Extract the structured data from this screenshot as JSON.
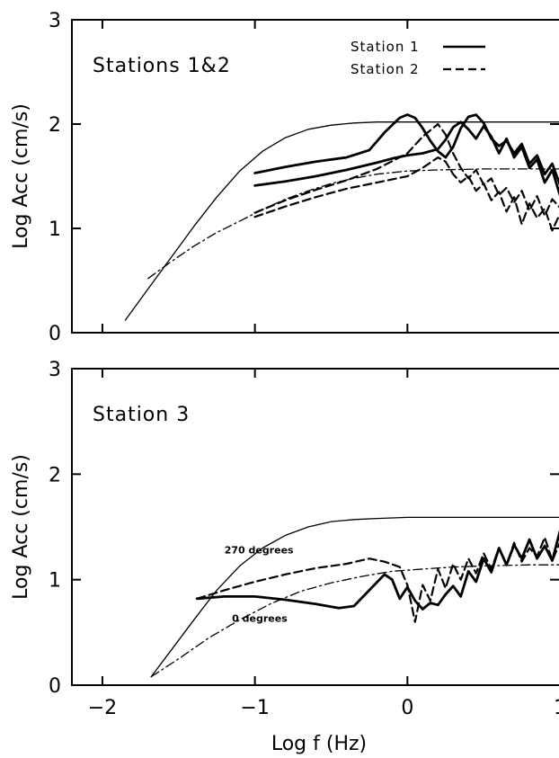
{
  "figure": {
    "xlabel": "Log f (Hz)",
    "xlim": [
      -2.2,
      1.1
    ],
    "xticks": [
      -2,
      -1,
      0,
      1
    ],
    "ylabel_top": "Log Acc (cm/s)",
    "ylabel_bottom": "Log Acc (cm/s)"
  },
  "chart_data": [
    {
      "type": "line",
      "panel": "top",
      "title": "Stations 1&2",
      "xlabel": "",
      "ylabel": "Log Acc (cm/s)",
      "xlim": [
        -2.2,
        1.1
      ],
      "ylim": [
        0,
        3
      ],
      "yticks": [
        0,
        1,
        2,
        3
      ],
      "legend": {
        "placement": "top-right",
        "entries": [
          {
            "name": "Station 1",
            "style": "solid"
          },
          {
            "name": "Station 2",
            "style": "dashed"
          }
        ]
      },
      "series": [
        {
          "id": "model_high",
          "style": "solid",
          "width": 1.3,
          "x": [
            -1.85,
            -1.7,
            -1.55,
            -1.4,
            -1.25,
            -1.1,
            -0.95,
            -0.8,
            -0.65,
            -0.5,
            -0.35,
            -0.2,
            0,
            0.5,
            1.0
          ],
          "y": [
            0.12,
            0.42,
            0.72,
            1.02,
            1.3,
            1.55,
            1.74,
            1.87,
            1.95,
            1.99,
            2.01,
            2.02,
            2.02,
            2.02,
            2.02
          ]
        },
        {
          "id": "model_low",
          "style": "dashdot",
          "width": 1.3,
          "x": [
            -1.7,
            -1.55,
            -1.4,
            -1.25,
            -1.1,
            -0.95,
            -0.8,
            -0.65,
            -0.5,
            -0.35,
            -0.2,
            0,
            0.2,
            0.5,
            1.0
          ],
          "y": [
            0.52,
            0.68,
            0.83,
            0.96,
            1.07,
            1.18,
            1.28,
            1.36,
            1.43,
            1.48,
            1.52,
            1.55,
            1.56,
            1.57,
            1.57
          ]
        },
        {
          "id": "station1_a",
          "style": "solid",
          "width": 2.8,
          "x": [
            -1.0,
            -0.8,
            -0.6,
            -0.4,
            -0.25,
            -0.15,
            -0.05,
            0.0,
            0.05,
            0.1,
            0.15,
            0.2,
            0.25,
            0.3,
            0.35,
            0.4,
            0.45,
            0.5,
            0.55,
            0.6,
            0.65,
            0.7,
            0.75,
            0.8,
            0.85,
            0.9,
            0.95,
            1.0,
            1.05,
            1.1
          ],
          "y": [
            1.53,
            1.59,
            1.64,
            1.68,
            1.75,
            1.92,
            2.06,
            2.09,
            2.06,
            1.96,
            1.84,
            1.74,
            1.68,
            1.78,
            1.96,
            2.07,
            2.09,
            2.01,
            1.86,
            1.79,
            1.84,
            1.72,
            1.81,
            1.62,
            1.7,
            1.52,
            1.62,
            1.42,
            1.51,
            1.38
          ]
        },
        {
          "id": "station1_b",
          "style": "solid",
          "width": 2.8,
          "x": [
            -1.0,
            -0.8,
            -0.6,
            -0.4,
            -0.2,
            -0.1,
            0.0,
            0.1,
            0.2,
            0.25,
            0.3,
            0.35,
            0.4,
            0.45,
            0.5,
            0.55,
            0.6,
            0.65,
            0.7,
            0.75,
            0.8,
            0.85,
            0.9,
            0.95,
            1.0,
            1.05,
            1.1
          ],
          "y": [
            1.41,
            1.45,
            1.5,
            1.56,
            1.63,
            1.67,
            1.7,
            1.72,
            1.76,
            1.85,
            1.97,
            2.02,
            1.95,
            1.86,
            1.98,
            1.88,
            1.72,
            1.86,
            1.68,
            1.78,
            1.58,
            1.66,
            1.44,
            1.56,
            1.32,
            1.47,
            1.36
          ]
        },
        {
          "id": "station2_a",
          "style": "dashed",
          "width": 2.2,
          "x": [
            -1.0,
            -0.8,
            -0.6,
            -0.4,
            -0.2,
            0.0,
            0.1,
            0.2,
            0.25,
            0.3,
            0.35,
            0.4,
            0.45,
            0.5,
            0.55,
            0.6,
            0.65,
            0.7,
            0.75,
            0.8,
            0.85,
            0.9,
            0.95,
            1.0,
            1.05,
            1.1
          ],
          "y": [
            1.15,
            1.27,
            1.37,
            1.46,
            1.57,
            1.72,
            1.88,
            2.0,
            1.9,
            1.72,
            1.58,
            1.48,
            1.56,
            1.42,
            1.48,
            1.32,
            1.39,
            1.25,
            1.36,
            1.17,
            1.31,
            1.12,
            1.28,
            1.2,
            1.33,
            1.25
          ]
        },
        {
          "id": "station2_b",
          "style": "dashed",
          "width": 2.2,
          "x": [
            -1.0,
            -0.8,
            -0.6,
            -0.4,
            -0.2,
            0.0,
            0.1,
            0.2,
            0.25,
            0.3,
            0.35,
            0.4,
            0.45,
            0.5,
            0.55,
            0.6,
            0.65,
            0.7,
            0.75,
            0.8,
            0.85,
            0.9,
            0.95,
            1.0,
            1.05,
            1.1
          ],
          "y": [
            1.11,
            1.21,
            1.3,
            1.38,
            1.44,
            1.5,
            1.58,
            1.68,
            1.64,
            1.52,
            1.44,
            1.5,
            1.36,
            1.43,
            1.27,
            1.35,
            1.16,
            1.3,
            1.04,
            1.24,
            1.1,
            1.19,
            0.98,
            1.14,
            1.06,
            1.21
          ]
        }
      ]
    },
    {
      "type": "line",
      "panel": "bottom",
      "title": "Station 3",
      "xlabel": "Log f (Hz)",
      "ylabel": "Log Acc (cm/s)",
      "xlim": [
        -2.2,
        1.1
      ],
      "ylim": [
        0,
        3
      ],
      "yticks": [
        0,
        1,
        2,
        3
      ],
      "annotations": [
        {
          "text": "270 degrees",
          "x": -1.2,
          "y": 1.25
        },
        {
          "text": "0 degrees",
          "x": -1.15,
          "y": 0.6
        }
      ],
      "series": [
        {
          "id": "model_high",
          "style": "solid",
          "width": 1.3,
          "x": [
            -1.68,
            -1.55,
            -1.4,
            -1.25,
            -1.1,
            -0.95,
            -0.8,
            -0.65,
            -0.5,
            -0.35,
            -0.2,
            0,
            0.5,
            1.0
          ],
          "y": [
            0.08,
            0.33,
            0.62,
            0.9,
            1.13,
            1.3,
            1.42,
            1.5,
            1.55,
            1.57,
            1.58,
            1.59,
            1.59,
            1.59
          ]
        },
        {
          "id": "model_low",
          "style": "dashdot",
          "width": 1.3,
          "x": [
            -1.68,
            -1.5,
            -1.3,
            -1.1,
            -0.9,
            -0.7,
            -0.5,
            -0.3,
            -0.1,
            0.1,
            0.3,
            0.5,
            0.8,
            1.1
          ],
          "y": [
            0.08,
            0.25,
            0.45,
            0.62,
            0.77,
            0.89,
            0.97,
            1.03,
            1.08,
            1.1,
            1.12,
            1.13,
            1.14,
            1.14
          ]
        },
        {
          "id": "deg0",
          "style": "solid",
          "width": 2.8,
          "x": [
            -1.38,
            -1.2,
            -1.0,
            -0.8,
            -0.6,
            -0.45,
            -0.35,
            -0.25,
            -0.15,
            -0.1,
            -0.05,
            0.0,
            0.05,
            0.1,
            0.15,
            0.2,
            0.25,
            0.3,
            0.35,
            0.4,
            0.45,
            0.5,
            0.55,
            0.6,
            0.65,
            0.7,
            0.75,
            0.8,
            0.85,
            0.9,
            0.95,
            1.0,
            1.05,
            1.1
          ],
          "y": [
            0.82,
            0.84,
            0.84,
            0.81,
            0.77,
            0.73,
            0.75,
            0.9,
            1.05,
            1.0,
            0.82,
            0.93,
            0.8,
            0.72,
            0.78,
            0.76,
            0.86,
            0.94,
            0.84,
            1.08,
            0.98,
            1.2,
            1.07,
            1.3,
            1.14,
            1.33,
            1.2,
            1.38,
            1.2,
            1.32,
            1.18,
            1.46,
            1.28,
            1.52
          ]
        },
        {
          "id": "deg270",
          "style": "dashed",
          "width": 2.2,
          "x": [
            -1.38,
            -1.2,
            -1.0,
            -0.8,
            -0.6,
            -0.4,
            -0.25,
            -0.15,
            -0.05,
            0.0,
            0.05,
            0.1,
            0.15,
            0.2,
            0.25,
            0.3,
            0.35,
            0.4,
            0.45,
            0.5,
            0.55,
            0.6,
            0.65,
            0.7,
            0.75,
            0.8,
            0.85,
            0.9,
            0.95,
            1.0,
            1.05,
            1.1
          ],
          "y": [
            0.82,
            0.9,
            0.98,
            1.05,
            1.11,
            1.15,
            1.2,
            1.17,
            1.12,
            0.95,
            0.6,
            0.95,
            0.8,
            1.1,
            0.92,
            1.15,
            1.0,
            1.2,
            1.06,
            1.25,
            1.1,
            1.3,
            1.14,
            1.35,
            1.17,
            1.3,
            1.22,
            1.4,
            1.18,
            1.35,
            1.26,
            1.4
          ]
        }
      ]
    }
  ]
}
